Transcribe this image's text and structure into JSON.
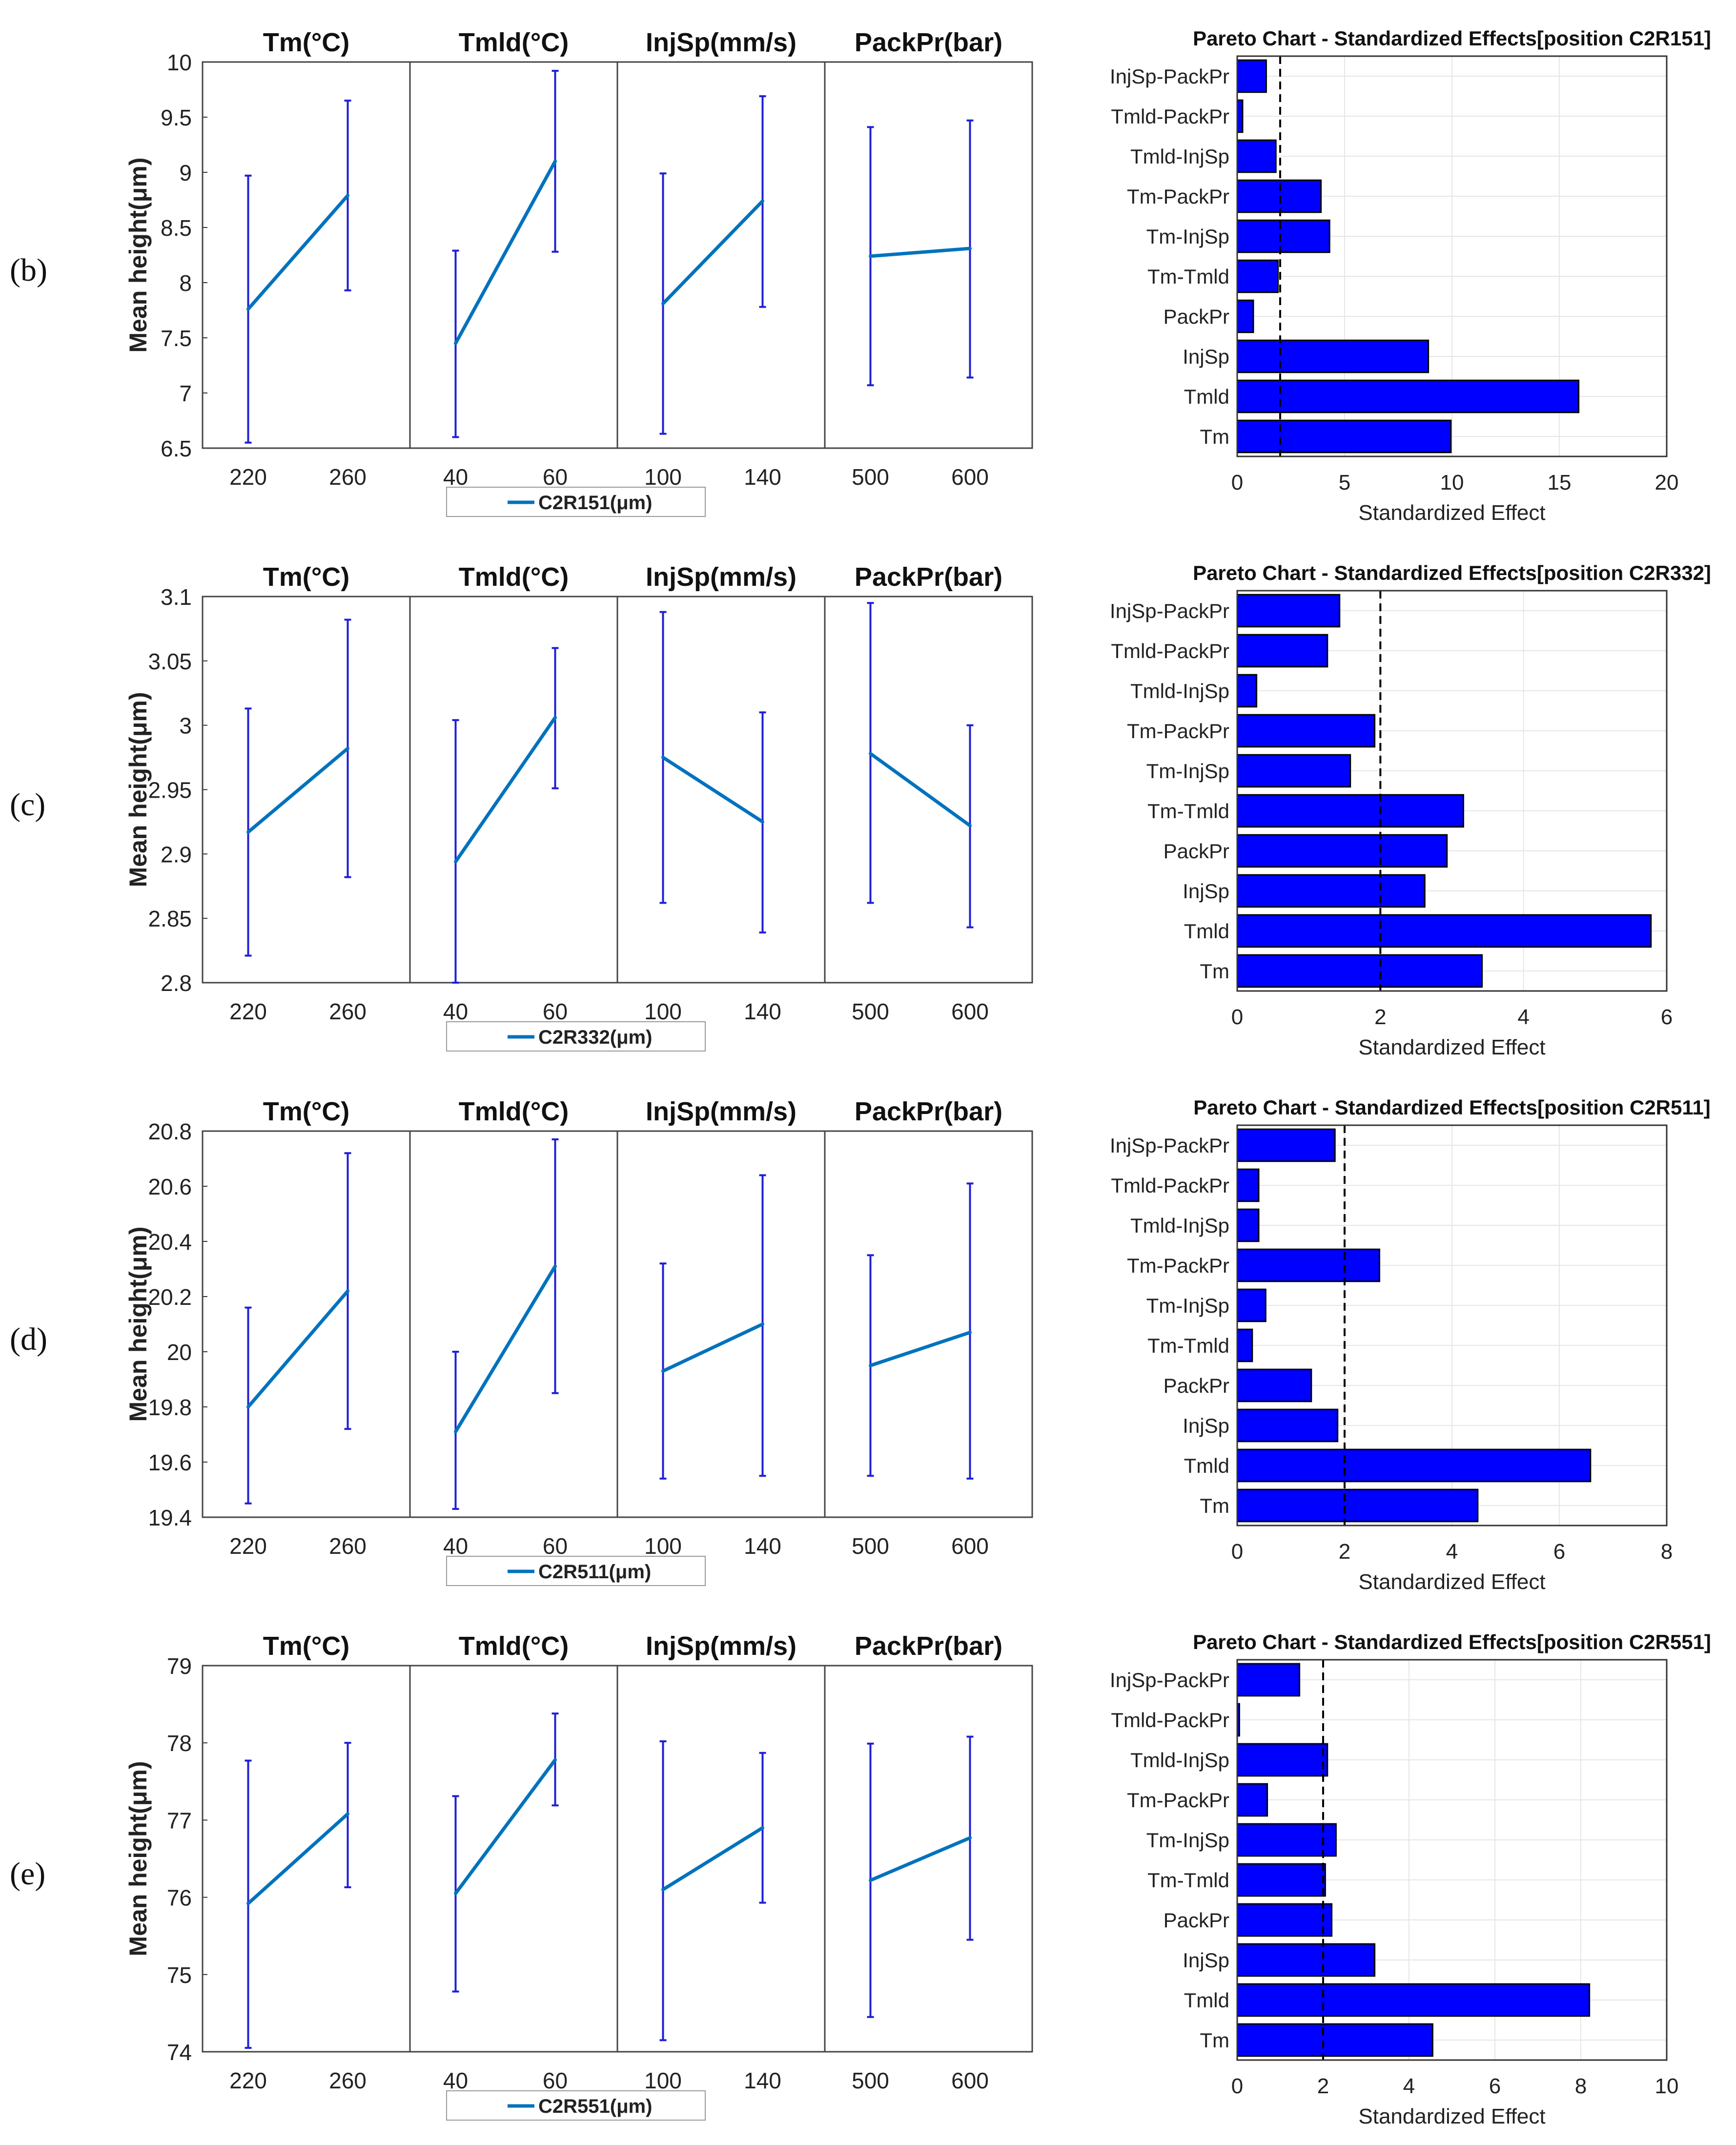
{
  "colors": {
    "line": "#0072BD",
    "errorbar": "#1f1fd6",
    "bar": "#0000ff",
    "bar_edge": "#000000",
    "panel_border": "#444444",
    "grid": "#e6e6e6",
    "threshold": "#000000"
  },
  "chart_data": [
    {
      "row_label": "(b)",
      "main_effects": {
        "type": "line",
        "ylabel": "Mean height(μm)",
        "ylim": [
          6.5,
          10
        ],
        "yticks": [
          "6.5",
          "7",
          "7.5",
          "8",
          "8.5",
          "9",
          "9.5",
          "10"
        ],
        "legend": "C2R151(μm)",
        "factors": [
          {
            "title": "Tm(°C)",
            "levels": [
              "220",
              "260"
            ],
            "means": [
              7.76,
              8.79
            ],
            "lower": [
              6.55,
              7.93
            ],
            "upper": [
              8.97,
              9.65
            ]
          },
          {
            "title": "Tmld(°C)",
            "levels": [
              "40",
              "60"
            ],
            "means": [
              7.45,
              9.1
            ],
            "lower": [
              6.6,
              8.28
            ],
            "upper": [
              8.29,
              9.92
            ]
          },
          {
            "title": "InjSp(mm/s)",
            "levels": [
              "100",
              "140"
            ],
            "means": [
              7.81,
              8.74
            ],
            "lower": [
              6.63,
              7.78
            ],
            "upper": [
              8.99,
              9.69
            ]
          },
          {
            "title": "PackPr(bar)",
            "levels": [
              "500",
              "600"
            ],
            "means": [
              8.24,
              8.31
            ],
            "lower": [
              7.07,
              7.14
            ],
            "upper": [
              9.41,
              9.47
            ]
          }
        ]
      },
      "pareto": {
        "type": "bar",
        "title": "Pareto Chart - Standardized Effects[position C2R151]",
        "xlabel": "Standardized Effect",
        "xlim": [
          0,
          20
        ],
        "xticks": [
          "0",
          "5",
          "10",
          "15",
          "20"
        ],
        "threshold": 2.0,
        "categories": [
          "InjSp-PackPr",
          "Tmld-PackPr",
          "Tmld-InjSp",
          "Tm-PackPr",
          "Tm-InjSp",
          "Tm-Tmld",
          "PackPr",
          "InjSp",
          "Tmld",
          "Tm"
        ],
        "values": [
          1.35,
          0.25,
          1.8,
          3.9,
          4.3,
          1.9,
          0.75,
          8.9,
          15.9,
          9.95
        ]
      }
    },
    {
      "row_label": "(c)",
      "main_effects": {
        "type": "line",
        "ylabel": "Mean height(μm)",
        "ylim": [
          2.8,
          3.1
        ],
        "yticks": [
          "2.8",
          "2.85",
          "2.9",
          "2.95",
          "3",
          "3.05",
          "3.1"
        ],
        "legend": "C2R332(μm)",
        "factors": [
          {
            "title": "Tm(°C)",
            "levels": [
              "220",
              "260"
            ],
            "means": [
              2.917,
              2.982
            ],
            "lower": [
              2.821,
              2.882
            ],
            "upper": [
              3.013,
              3.082
            ]
          },
          {
            "title": "Tmld(°C)",
            "levels": [
              "40",
              "60"
            ],
            "means": [
              2.894,
              3.006
            ],
            "lower": [
              2.8,
              2.951
            ],
            "upper": [
              3.004,
              3.06
            ]
          },
          {
            "title": "InjSp(mm/s)",
            "levels": [
              "100",
              "140"
            ],
            "means": [
              2.975,
              2.925
            ],
            "lower": [
              2.862,
              2.839
            ],
            "upper": [
              3.088,
              3.01
            ]
          },
          {
            "title": "PackPr(bar)",
            "levels": [
              "500",
              "600"
            ],
            "means": [
              2.978,
              2.922
            ],
            "lower": [
              2.862,
              2.843
            ],
            "upper": [
              3.095,
              3.0
            ]
          }
        ]
      },
      "pareto": {
        "type": "bar",
        "title": "Pareto Chart - Standardized Effects[position C2R332]",
        "xlabel": "Standardized Effect",
        "xlim": [
          0,
          6
        ],
        "xticks": [
          "0",
          "2",
          "4",
          "6"
        ],
        "threshold": 2.0,
        "categories": [
          "InjSp-PackPr",
          "Tmld-PackPr",
          "Tmld-InjSp",
          "Tm-PackPr",
          "Tm-InjSp",
          "Tm-Tmld",
          "PackPr",
          "InjSp",
          "Tmld",
          "Tm"
        ],
        "values": [
          1.43,
          1.26,
          0.27,
          1.92,
          1.58,
          3.16,
          2.93,
          2.62,
          5.78,
          3.42
        ]
      }
    },
    {
      "row_label": "(d)",
      "main_effects": {
        "type": "line",
        "ylabel": "Mean height(μm)",
        "ylim": [
          19.4,
          20.8
        ],
        "yticks": [
          "19.4",
          "19.6",
          "19.8",
          "20",
          "20.2",
          "20.4",
          "20.6",
          "20.8"
        ],
        "legend": "C2R511(μm)",
        "factors": [
          {
            "title": "Tm(°C)",
            "levels": [
              "220",
              "260"
            ],
            "means": [
              19.8,
              20.22
            ],
            "lower": [
              19.45,
              19.72
            ],
            "upper": [
              20.16,
              20.72
            ]
          },
          {
            "title": "Tmld(°C)",
            "levels": [
              "40",
              "60"
            ],
            "means": [
              19.71,
              20.31
            ],
            "lower": [
              19.43,
              19.85
            ],
            "upper": [
              20.0,
              20.77
            ]
          },
          {
            "title": "InjSp(mm/s)",
            "levels": [
              "100",
              "140"
            ],
            "means": [
              19.93,
              20.1
            ],
            "lower": [
              19.54,
              19.55
            ],
            "upper": [
              20.32,
              20.64
            ]
          },
          {
            "title": "PackPr(bar)",
            "levels": [
              "500",
              "600"
            ],
            "means": [
              19.95,
              20.07
            ],
            "lower": [
              19.55,
              19.54
            ],
            "upper": [
              20.35,
              20.61
            ]
          }
        ]
      },
      "pareto": {
        "type": "bar",
        "title": "Pareto Chart - Standardized Effects[position C2R511]",
        "xlabel": "Standardized Effect",
        "xlim": [
          0,
          8
        ],
        "xticks": [
          "0",
          "2",
          "4",
          "6",
          "8"
        ],
        "threshold": 2.0,
        "categories": [
          "InjSp-PackPr",
          "Tmld-PackPr",
          "Tmld-InjSp",
          "Tm-PackPr",
          "Tm-InjSp",
          "Tm-Tmld",
          "PackPr",
          "InjSp",
          "Tmld",
          "Tm"
        ],
        "values": [
          1.82,
          0.4,
          0.4,
          2.65,
          0.53,
          0.28,
          1.38,
          1.87,
          6.58,
          4.48
        ]
      }
    },
    {
      "row_label": "(e)",
      "main_effects": {
        "type": "line",
        "ylabel": "Mean height(μm)",
        "ylim": [
          74,
          79
        ],
        "yticks": [
          "74",
          "75",
          "76",
          "77",
          "78",
          "79"
        ],
        "legend": "C2R551(μm)",
        "factors": [
          {
            "title": "Tm(°C)",
            "levels": [
              "220",
              "260"
            ],
            "means": [
              75.92,
              77.08
            ],
            "lower": [
              74.05,
              76.13
            ],
            "upper": [
              77.77,
              78.0
            ]
          },
          {
            "title": "Tmld(°C)",
            "levels": [
              "40",
              "60"
            ],
            "means": [
              76.05,
              77.78
            ],
            "lower": [
              74.78,
              77.19
            ],
            "upper": [
              77.31,
              78.38
            ]
          },
          {
            "title": "InjSp(mm/s)",
            "levels": [
              "100",
              "140"
            ],
            "means": [
              76.1,
              76.9
            ],
            "lower": [
              74.15,
              75.93
            ],
            "upper": [
              78.02,
              77.87
            ]
          },
          {
            "title": "PackPr(bar)",
            "levels": [
              "500",
              "600"
            ],
            "means": [
              76.22,
              76.77
            ],
            "lower": [
              74.45,
              75.45
            ],
            "upper": [
              77.99,
              78.08
            ]
          }
        ]
      },
      "pareto": {
        "type": "bar",
        "title": "Pareto Chart - Standardized Effects[position C2R551]",
        "xlabel": "Standardized Effect",
        "xlim": [
          0,
          10
        ],
        "xticks": [
          "0",
          "2",
          "4",
          "6",
          "8",
          "10"
        ],
        "threshold": 2.0,
        "categories": [
          "InjSp-PackPr",
          "Tmld-PackPr",
          "Tmld-InjSp",
          "Tm-PackPr",
          "Tm-InjSp",
          "Tm-Tmld",
          "PackPr",
          "InjSp",
          "Tmld",
          "Tm"
        ],
        "values": [
          1.45,
          0.05,
          2.1,
          0.7,
          2.3,
          2.05,
          2.2,
          3.2,
          8.2,
          4.55
        ]
      }
    }
  ]
}
